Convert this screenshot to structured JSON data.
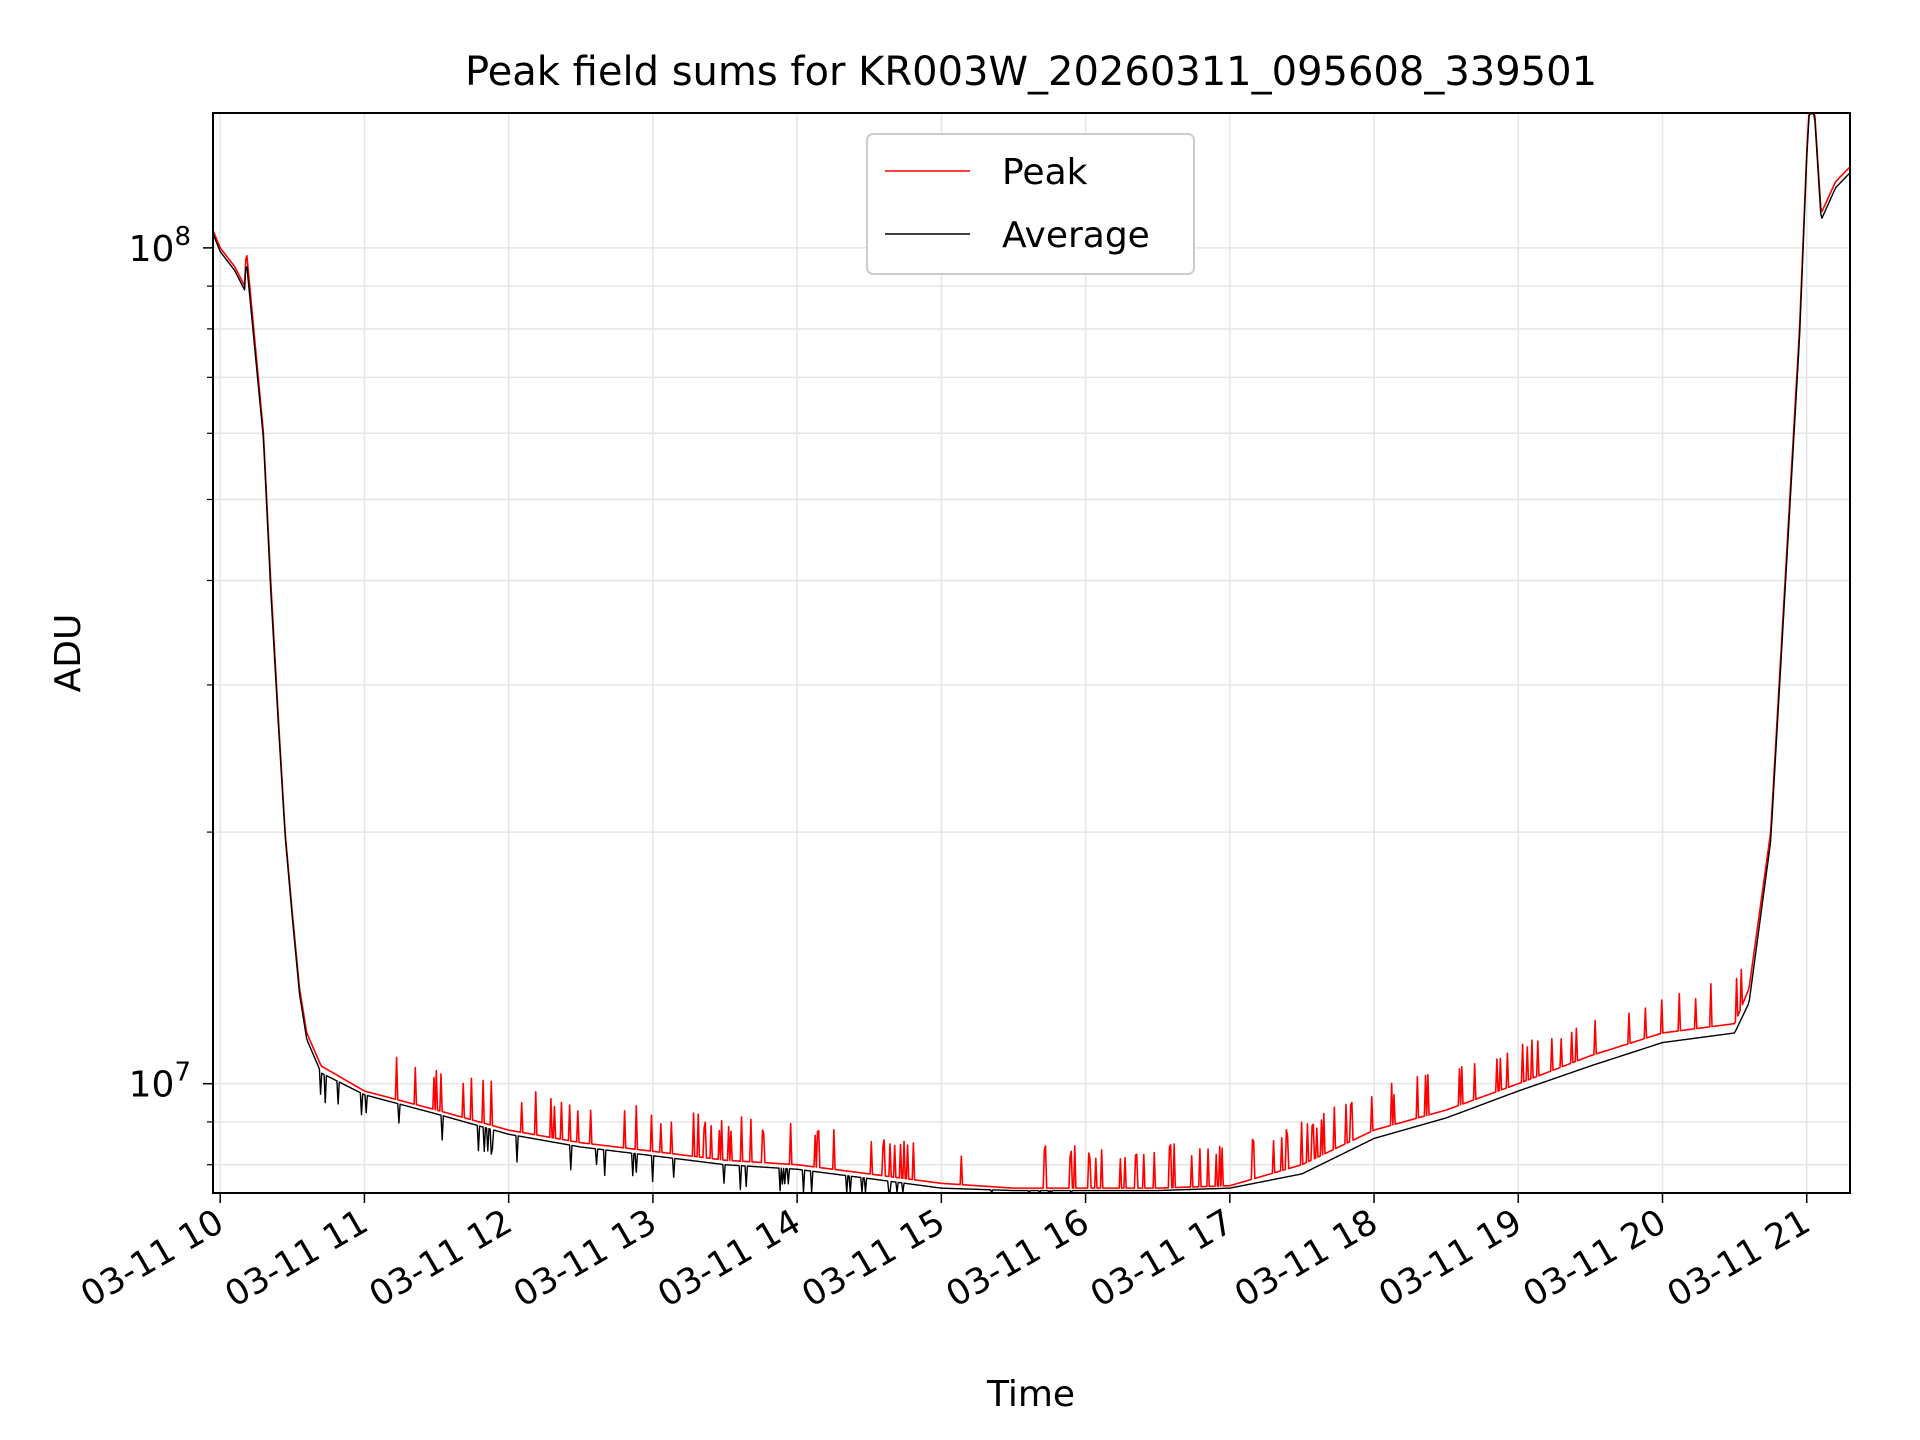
{
  "chart_data": {
    "type": "line",
    "title": "Peak field sums for KR003W_20260311_095608_339501",
    "xlabel": "Time",
    "ylabel": "ADU",
    "yscale": "log",
    "ylim": [
      7400000,
      145000000
    ],
    "xlim_hours": [
      9.95,
      21.3
    ],
    "grid": true,
    "legend_position": "top-center",
    "x_tick_labels": [
      "03-11 10",
      "03-11 11",
      "03-11 12",
      "03-11 13",
      "03-11 14",
      "03-11 15",
      "03-11 16",
      "03-11 17",
      "03-11 18",
      "03-11 19",
      "03-11 20",
      "03-11 21"
    ],
    "x_tick_hours": [
      10,
      11,
      12,
      13,
      14,
      15,
      16,
      17,
      18,
      19,
      20,
      21
    ],
    "y_major_ticks": [
      {
        "value": 10000000,
        "base": "10",
        "exp": "7"
      },
      {
        "value": 100000000,
        "base": "10",
        "exp": "8"
      }
    ],
    "y_minor_ticks": [
      8000000,
      9000000,
      20000000,
      30000000,
      40000000,
      50000000,
      60000000,
      70000000,
      80000000,
      90000000
    ],
    "series": [
      {
        "name": "Peak",
        "color": "#ff0000",
        "hours": [
          9.95,
          10.0,
          10.1,
          10.17,
          10.18,
          10.3,
          10.35,
          10.4,
          10.45,
          10.5,
          10.55,
          10.6,
          10.7,
          11.0,
          11.5,
          12.0,
          12.5,
          13.0,
          13.5,
          14.0,
          14.5,
          15.0,
          15.5,
          16.0,
          16.5,
          17.0,
          17.5,
          18.0,
          18.5,
          19.0,
          19.5,
          20.0,
          20.5,
          20.6,
          20.75,
          20.85,
          20.95,
          21.0,
          21.02,
          21.05,
          21.1,
          21.2,
          21.3
        ],
        "values": [
          105000000,
          100000000,
          95000000,
          90000000,
          100000000,
          60000000,
          40000000,
          28000000,
          20000000,
          16000000,
          13000000,
          11500000,
          10500000,
          9800000,
          9300000,
          8800000,
          8500000,
          8300000,
          8100000,
          8000000,
          7800000,
          7600000,
          7500000,
          7500000,
          7500000,
          7550000,
          8000000,
          8800000,
          9300000,
          10000000,
          10800000,
          11500000,
          11800000,
          13000000,
          20000000,
          40000000,
          80000000,
          130000000,
          150000000,
          150000000,
          110000000,
          120000000,
          125000000
        ]
      },
      {
        "name": "Average",
        "color": "#000000",
        "hours": [
          9.95,
          10.0,
          10.1,
          10.17,
          10.18,
          10.3,
          10.35,
          10.4,
          10.45,
          10.5,
          10.55,
          10.6,
          10.7,
          11.0,
          11.5,
          12.0,
          12.5,
          13.0,
          13.5,
          14.0,
          14.5,
          15.0,
          15.5,
          16.0,
          16.5,
          17.0,
          17.5,
          18.0,
          18.5,
          19.0,
          19.5,
          20.0,
          20.5,
          20.6,
          20.75,
          20.85,
          20.95,
          21.0,
          21.02,
          21.05,
          21.1,
          21.2,
          21.3
        ],
        "values": [
          104000000,
          99000000,
          94000000,
          89000000,
          97000000,
          59000000,
          39000000,
          27500000,
          19800000,
          15800000,
          12800000,
          11300000,
          10300000,
          9700000,
          9200000,
          8700000,
          8400000,
          8200000,
          8000000,
          7900000,
          7700000,
          7500000,
          7450000,
          7450000,
          7450000,
          7500000,
          7800000,
          8600000,
          9100000,
          9800000,
          10500000,
          11200000,
          11500000,
          12500000,
          19500000,
          39000000,
          78000000,
          128000000,
          148000000,
          148000000,
          108000000,
          118000000,
          123000000
        ]
      }
    ]
  }
}
